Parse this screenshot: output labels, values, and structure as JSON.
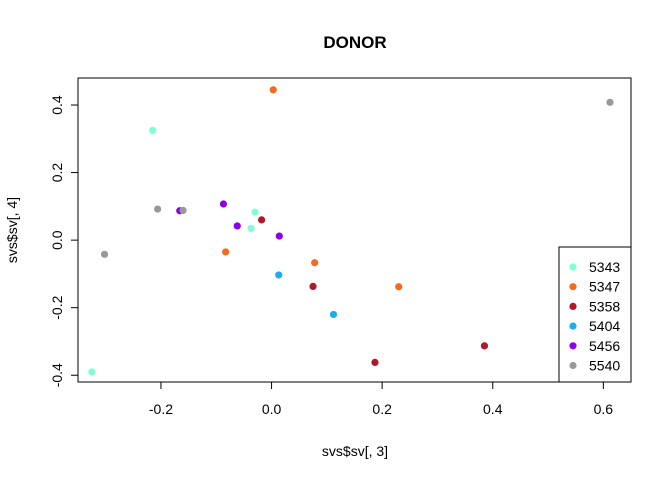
{
  "chart_data": {
    "type": "scatter",
    "title": "DONOR",
    "xlabel": "svs$sv[, 3]",
    "ylabel": "svs$sv[, 4]",
    "xlim": [
      -0.35,
      0.65
    ],
    "ylim": [
      -0.42,
      0.48
    ],
    "xticks": [
      -0.2,
      0.0,
      0.2,
      0.4,
      0.6
    ],
    "xtick_labels": [
      "-0.2",
      "0.0",
      "0.2",
      "0.4",
      "0.6"
    ],
    "yticks": [
      -0.4,
      -0.2,
      0.0,
      0.2,
      0.4
    ],
    "ytick_labels": [
      "-0.4",
      "-0.2",
      "0.0",
      "0.2",
      "0.4"
    ],
    "grid": false,
    "legend_position": "bottom-right",
    "series": [
      {
        "name": "5343",
        "color": "#7FFFD4",
        "points": [
          [
            -0.215,
            0.325
          ],
          [
            -0.03,
            0.083
          ],
          [
            -0.037,
            0.035
          ],
          [
            -0.325,
            -0.39
          ]
        ]
      },
      {
        "name": "5347",
        "color": "#F26B23",
        "points": [
          [
            0.003,
            0.445
          ],
          [
            -0.083,
            -0.035
          ],
          [
            0.078,
            -0.067
          ],
          [
            0.23,
            -0.138
          ]
        ]
      },
      {
        "name": "5358",
        "color": "#B2182B",
        "points": [
          [
            -0.018,
            0.06
          ],
          [
            0.075,
            -0.137
          ],
          [
            0.187,
            -0.362
          ],
          [
            0.385,
            -0.313
          ]
        ]
      },
      {
        "name": "5404",
        "color": "#1CACEF",
        "points": [
          [
            0.013,
            -0.103
          ],
          [
            0.112,
            -0.22
          ]
        ]
      },
      {
        "name": "5456",
        "color": "#8B00E8",
        "points": [
          [
            -0.087,
            0.107
          ],
          [
            -0.166,
            0.087
          ],
          [
            -0.062,
            0.042
          ],
          [
            0.014,
            0.012
          ]
        ]
      },
      {
        "name": "5540",
        "color": "#999999",
        "points": [
          [
            0.612,
            0.408
          ],
          [
            -0.206,
            0.092
          ],
          [
            -0.16,
            0.088
          ],
          [
            -0.302,
            -0.042
          ]
        ]
      }
    ]
  }
}
